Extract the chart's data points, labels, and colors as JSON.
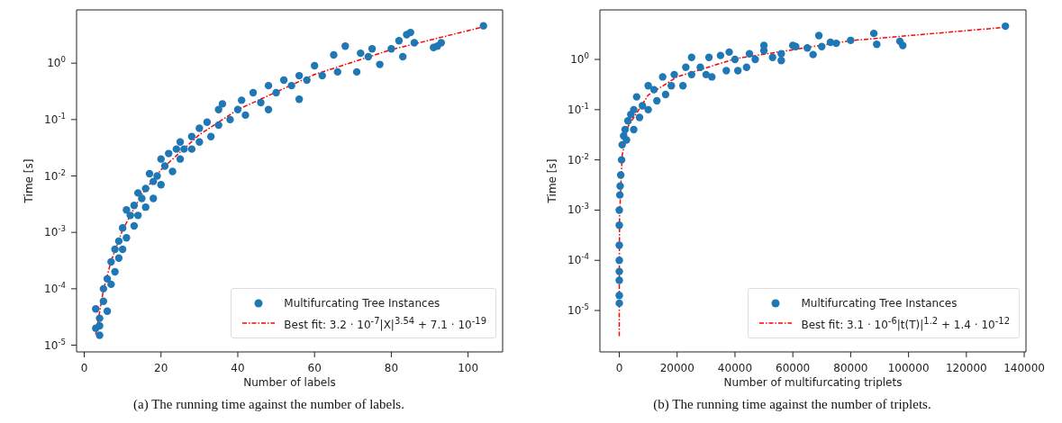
{
  "chart_data": [
    {
      "type": "scatter",
      "xlabel": "Number of labels",
      "ylabel": "Time [s]",
      "log": "y",
      "xlim": [
        -2,
        109
      ],
      "xticks": [
        0,
        20,
        40,
        60,
        80,
        100
      ],
      "ylim": [
        7.6e-06,
        8.8
      ],
      "yticks": [
        {
          "value": 1e-05,
          "label": "10$^{-5}$"
        },
        {
          "value": 0.0001,
          "label": "10$^{-4}$"
        },
        {
          "value": 0.001,
          "label": "10$^{-3}$"
        },
        {
          "value": 0.01,
          "label": "10$^{-2}$"
        },
        {
          "value": 0.1,
          "label": "10$^{-1}$"
        },
        {
          "value": 1,
          "label": "10$^{0}$"
        }
      ],
      "grid": false,
      "legend": "bottom right",
      "annotations": [
        "(a) The running time against the number of labels."
      ],
      "series": [
        {
          "name": "Multifurcating Tree Instances",
          "color": "#1f77b4",
          "marker": "circle",
          "x": [
            3,
            3,
            4,
            4,
            4,
            5,
            5,
            6,
            6,
            7,
            7,
            8,
            8,
            9,
            9,
            10,
            10,
            11,
            11,
            12,
            13,
            13,
            14,
            14,
            15,
            16,
            16,
            17,
            18,
            18,
            19,
            20,
            20,
            21,
            22,
            23,
            24,
            25,
            25,
            26,
            28,
            28,
            30,
            30,
            32,
            33,
            35,
            35,
            36,
            38,
            40,
            41,
            42,
            44,
            46,
            48,
            48,
            50,
            52,
            54,
            56,
            56,
            58,
            60,
            62,
            65,
            66,
            68,
            71,
            72,
            74,
            75,
            77,
            80,
            82,
            83,
            84,
            85,
            86,
            91,
            92,
            93,
            104
          ],
          "values": [
            4.4e-05,
            2e-05,
            1.5e-05,
            3e-05,
            2.2e-05,
            0.0001,
            6e-05,
            0.00015,
            4e-05,
            0.0003,
            0.00012,
            0.0005,
            0.0002,
            0.0007,
            0.00035,
            0.0012,
            0.0005,
            0.0025,
            0.0008,
            0.002,
            0.003,
            0.0013,
            0.005,
            0.002,
            0.004,
            0.006,
            0.0028,
            0.011,
            0.008,
            0.004,
            0.01,
            0.02,
            0.007,
            0.015,
            0.025,
            0.012,
            0.03,
            0.04,
            0.02,
            0.03,
            0.05,
            0.03,
            0.07,
            0.04,
            0.09,
            0.05,
            0.15,
            0.08,
            0.19,
            0.1,
            0.15,
            0.22,
            0.12,
            0.3,
            0.2,
            0.4,
            0.15,
            0.3,
            0.5,
            0.4,
            0.23,
            0.6,
            0.5,
            0.9,
            0.6,
            1.4,
            0.7,
            2,
            0.7,
            1.5,
            1.3,
            1.8,
            0.95,
            1.8,
            2.5,
            1.3,
            3.2,
            3.5,
            2.3,
            1.9,
            2,
            2.3,
            4.6
          ]
        },
        {
          "name": "Best fit: 3.2 · 10$^{-7}$|X|$^{3.54}$ + 7.1 · 10$^{-19}$",
          "type": "line",
          "color": "#ff0000",
          "marker": "none",
          "line_style": "dashed",
          "x": [
            3,
            5,
            7,
            10,
            15,
            20,
            30,
            40,
            60,
            80,
            104
          ],
          "values": [
            1.56e-05,
            9.5e-05,
            0.00031,
            0.00111,
            0.0047,
            0.0129,
            0.054,
            0.15,
            0.63,
            1.74,
            4.4
          ]
        }
      ]
    },
    {
      "type": "scatter",
      "xlabel": "Number of multifurcating triplets",
      "ylabel": "Time [s]",
      "log": "y",
      "xlim": [
        -6700,
        140600
      ],
      "xticks": [
        0,
        20000,
        40000,
        60000,
        80000,
        100000,
        120000,
        140000
      ],
      "ylim": [
        1.5e-06,
        9.7
      ],
      "yticks": [
        {
          "value": 1e-05,
          "label": "10$^{-5}$"
        },
        {
          "value": 0.0001,
          "label": "10$^{-4}$"
        },
        {
          "value": 0.001,
          "label": "10$^{-3}$"
        },
        {
          "value": 0.01,
          "label": "10$^{-2}$"
        },
        {
          "value": 0.1,
          "label": "10$^{-1}$"
        },
        {
          "value": 1,
          "label": "10$^{0}$"
        }
      ],
      "grid": false,
      "legend": "bottom right",
      "annotations": [
        "(b) The running time against the number of triplets."
      ],
      "series": [
        {
          "name": "Multifurcating Tree Instances",
          "color": "#1f77b4",
          "marker": "circle",
          "x": [
            0,
            0,
            0,
            0,
            0,
            0,
            0,
            0,
            200,
            300,
            500,
            800,
            1000,
            1500,
            2000,
            2500,
            3000,
            4000,
            5000,
            5000,
            6000,
            7000,
            8000,
            10000,
            10000,
            12000,
            13000,
            15000,
            16000,
            18000,
            19000,
            22000,
            23000,
            25000,
            25000,
            28000,
            30000,
            31000,
            32000,
            35000,
            37000,
            38000,
            40000,
            41000,
            44000,
            45000,
            47000,
            50000,
            50000,
            53000,
            56000,
            56000,
            60000,
            61000,
            65000,
            67000,
            69000,
            70000,
            73000,
            75000,
            80000,
            88000,
            89000,
            97000,
            98000,
            133500
          ],
          "values": [
            1.4e-05,
            2e-05,
            4e-05,
            6e-05,
            0.0001,
            0.0002,
            0.0005,
            0.001,
            0.002,
            0.003,
            0.005,
            0.01,
            0.02,
            0.03,
            0.04,
            0.025,
            0.06,
            0.08,
            0.04,
            0.1,
            0.18,
            0.07,
            0.12,
            0.3,
            0.1,
            0.25,
            0.15,
            0.45,
            0.2,
            0.3,
            0.5,
            0.3,
            0.7,
            1.1,
            0.5,
            0.7,
            0.5,
            1.1,
            0.45,
            1.2,
            0.6,
            1.4,
            1,
            0.6,
            0.7,
            1.3,
            1,
            1.9,
            1.5,
            1.1,
            0.95,
            1.3,
            1.9,
            1.8,
            1.7,
            1.25,
            3,
            1.8,
            2.2,
            2.1,
            2.4,
            3.3,
            2,
            2.3,
            1.9,
            4.6
          ]
        },
        {
          "name": "Best fit: 3.1 · 10$^{-6}$|t(T)|$^{1.2}$ + 1.4 · 10$^{-12}$",
          "type": "line",
          "color": "#ff0000",
          "marker": "none",
          "line_style": "dashed",
          "x": [
            1,
            10,
            100,
            1000,
            3000,
            10000,
            20000,
            40000,
            80000,
            134000
          ],
          "values": [
            3.1e-06,
            4.9e-05,
            0.00078,
            0.0123,
            0.046,
            0.196,
            0.45,
            1.03,
            2.37,
            4.4
          ]
        }
      ]
    }
  ]
}
